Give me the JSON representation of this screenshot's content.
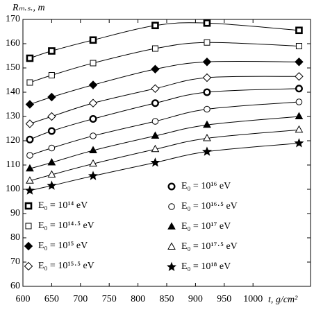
{
  "chart_data": {
    "type": "line",
    "ylabel": "Rₘ.ₛ., m",
    "xlabel": "t, g/cm²",
    "x": [
      612,
      650,
      722,
      830,
      920,
      1080
    ],
    "xlim": [
      600,
      1100
    ],
    "xticks": [
      600,
      650,
      700,
      750,
      800,
      850,
      900,
      950,
      1000
    ],
    "ylim": [
      60,
      170
    ],
    "yticks": [
      60,
      70,
      80,
      90,
      100,
      110,
      120,
      130,
      140,
      150,
      160,
      170
    ],
    "color": "#000000",
    "series": [
      {
        "name": "E₀ = 10¹⁴ eV",
        "marker": "square",
        "filled": true,
        "values": [
          154,
          157,
          161.5,
          167.5,
          168.5,
          165.5
        ]
      },
      {
        "name": "E₀ = 10¹⁴·⁵ eV",
        "marker": "square",
        "filled": false,
        "values": [
          144,
          147,
          152,
          158,
          160.5,
          159
        ]
      },
      {
        "name": "E₀ = 10¹⁵ eV",
        "marker": "diamond",
        "filled": true,
        "values": [
          135,
          138,
          143,
          149.5,
          152.5,
          152.5
        ]
      },
      {
        "name": "E₀ = 10¹⁵·⁵ eV",
        "marker": "diamond",
        "filled": false,
        "values": [
          127,
          130,
          135.5,
          141.5,
          146,
          146.5
        ]
      },
      {
        "name": "E₀ = 10¹⁶ eV",
        "marker": "circle",
        "filled": true,
        "values": [
          120.5,
          124,
          129,
          135.5,
          140,
          141.5
        ]
      },
      {
        "name": "E₀ = 10¹⁶·⁵ eV",
        "marker": "circle",
        "filled": false,
        "values": [
          114,
          117,
          122,
          128,
          133,
          136
        ]
      },
      {
        "name": "E₀ = 10¹⁷ eV",
        "marker": "triangle",
        "filled": true,
        "values": [
          108.5,
          111,
          116,
          122,
          126.5,
          130
        ]
      },
      {
        "name": "E₀ = 10¹⁷·⁵ eV",
        "marker": "triangle",
        "filled": false,
        "values": [
          103.5,
          106,
          110.5,
          116.5,
          121,
          124.5
        ]
      },
      {
        "name": "E₀ = 10¹⁸ eV",
        "marker": "star",
        "filled": true,
        "values": [
          99.5,
          101.5,
          105.5,
          111,
          115.5,
          119
        ]
      }
    ]
  }
}
